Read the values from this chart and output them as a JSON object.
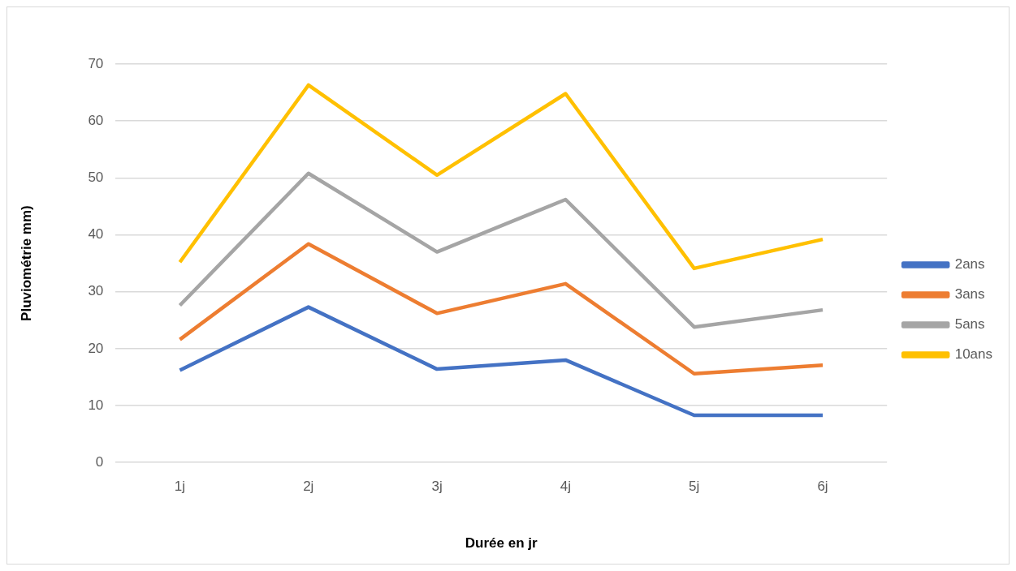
{
  "chart_data": {
    "type": "line",
    "xlabel": "Durée en jr",
    "ylabel": "Pluviométrie mm)",
    "categories": [
      "1j",
      "2j",
      "3j",
      "4j",
      "5j",
      "6j"
    ],
    "series": [
      {
        "name": "2ans",
        "color": "#4472c4",
        "values": [
          16.2,
          27.3,
          16.4,
          18.0,
          8.3,
          8.3
        ]
      },
      {
        "name": "3ans",
        "color": "#ed7d31",
        "values": [
          21.6,
          38.4,
          26.2,
          31.4,
          15.6,
          17.1
        ]
      },
      {
        "name": "5ans",
        "color": "#a5a5a5",
        "values": [
          27.6,
          50.8,
          37.0,
          46.2,
          23.8,
          26.8
        ]
      },
      {
        "name": "10ans",
        "color": "#ffc000",
        "values": [
          35.2,
          66.3,
          50.5,
          64.8,
          34.1,
          39.2
        ]
      }
    ],
    "ylim": [
      0,
      70
    ],
    "yticks": [
      0,
      10,
      20,
      30,
      40,
      50,
      60,
      70
    ],
    "grid": "y",
    "legend": "right",
    "marker": "none",
    "line_style": "solid"
  }
}
